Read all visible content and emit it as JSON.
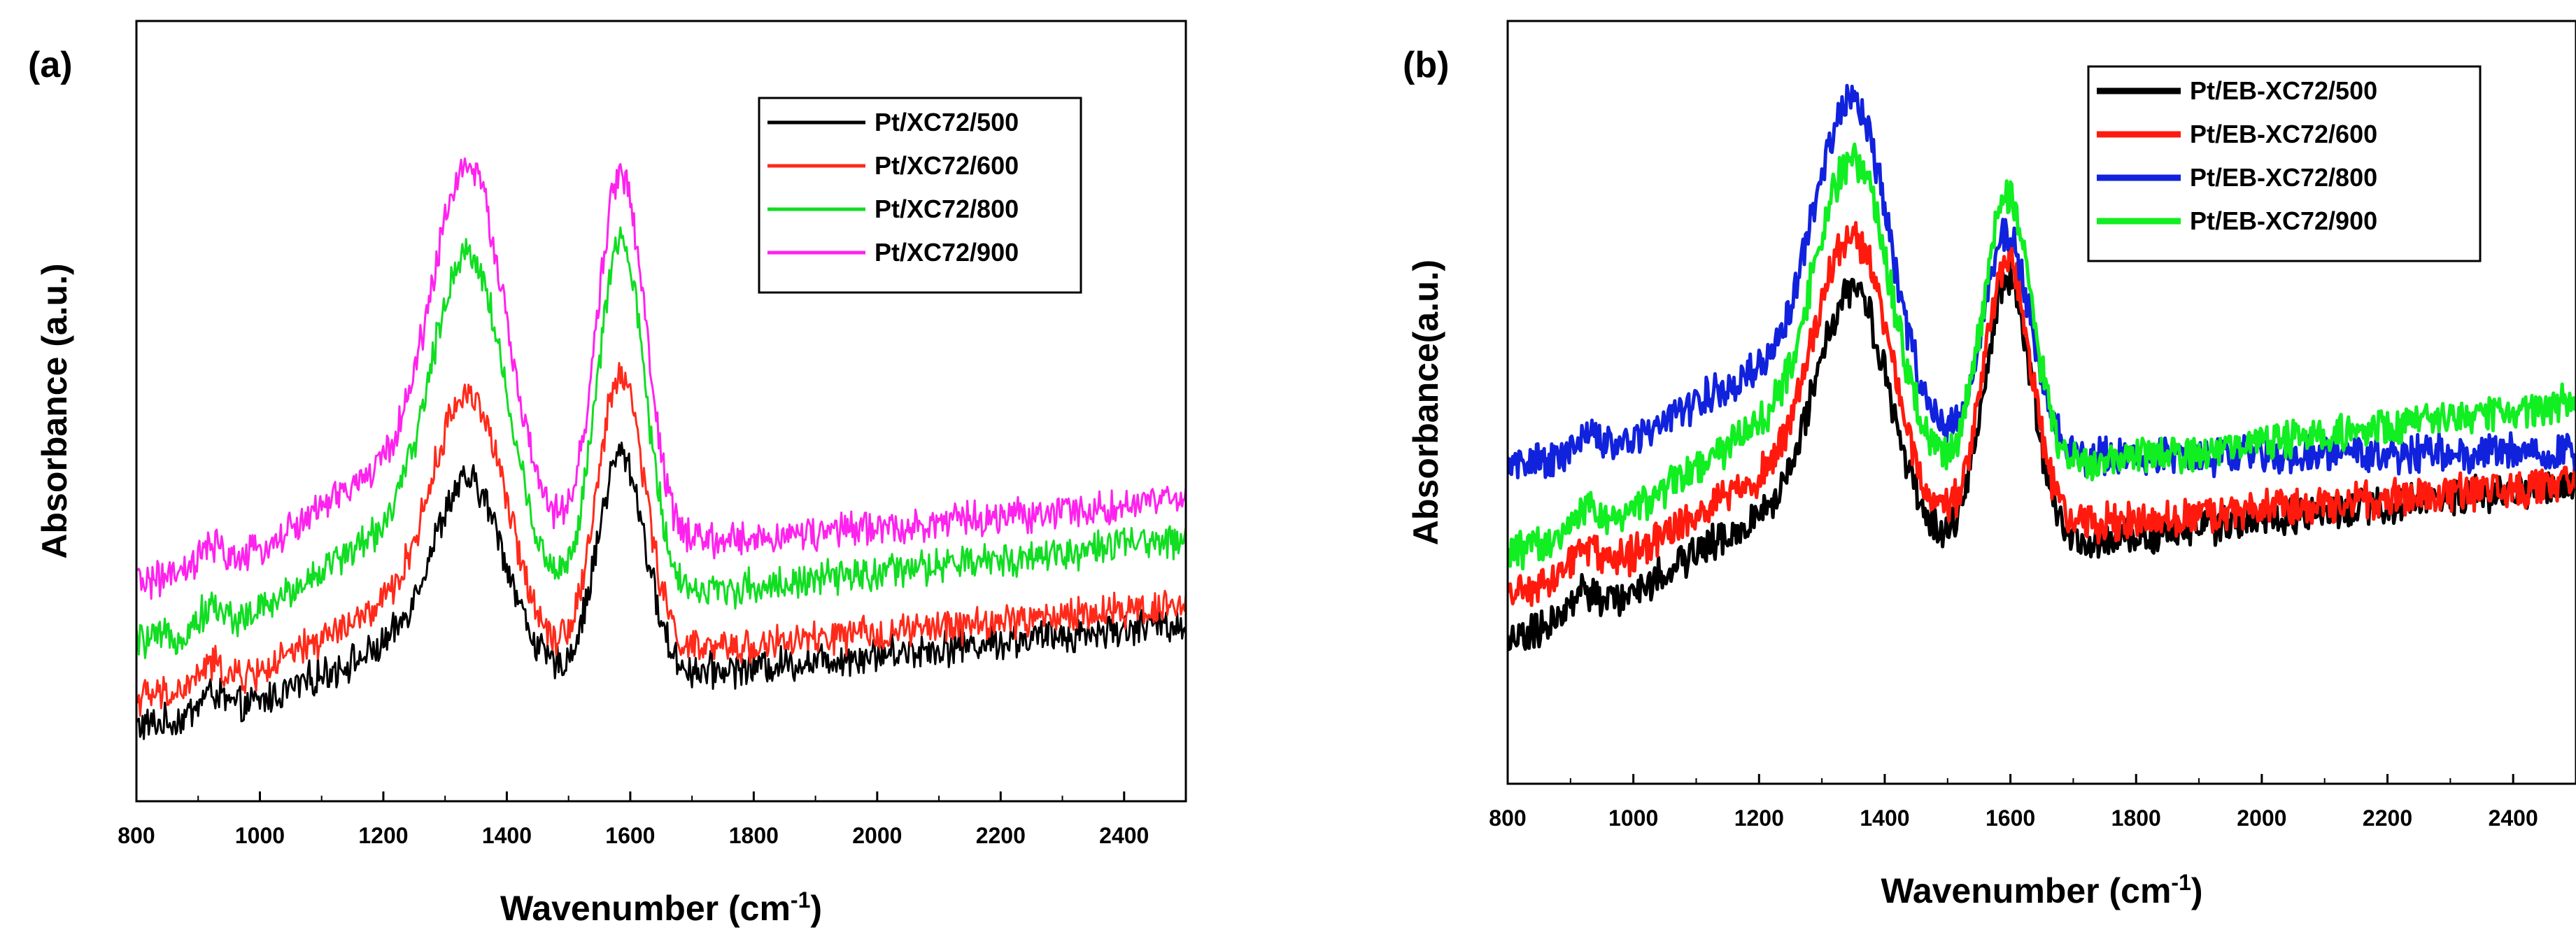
{
  "chart_data": [
    {
      "panel": "(a)",
      "type": "line",
      "xlabel_main": "Wavenumber (cm",
      "xlabel_sup": "-1",
      "xlabel_end": ")",
      "ylabel": "Absorbance (a.u.)",
      "xlim": [
        800,
        2500
      ],
      "ylim": [
        -0.35,
        3.8
      ],
      "xticks": [
        800,
        1000,
        1200,
        1400,
        1600,
        1800,
        2000,
        2200,
        2400
      ],
      "legend_position": "top-right",
      "peaks": [
        1340,
        1585
      ],
      "series": [
        {
          "name": "Pt/XC72/500",
          "color": "#000000",
          "offset": 0.0,
          "d_height": 1.0,
          "g_height": 1.2,
          "base_start": 0.05,
          "base_end": 0.6,
          "ratio": 1.05
        },
        {
          "name": "Pt/XC72/600",
          "color": "#ff2a1a",
          "offset": 0.15,
          "d_height": 1.3,
          "g_height": 1.5,
          "base_start": 0.05,
          "base_end": 0.55,
          "ratio": 1.1
        },
        {
          "name": "Pt/XC72/800",
          "color": "#11dd22",
          "offset": 0.35,
          "d_height": 1.7,
          "g_height": 1.9,
          "base_start": 0.15,
          "base_end": 0.7,
          "ratio": 1.2
        },
        {
          "name": "Pt/XC72/900",
          "color": "#ff22ee",
          "offset": 0.6,
          "d_height": 1.85,
          "g_height": 2.0,
          "base_start": 0.22,
          "base_end": 0.65,
          "ratio": 1.2
        }
      ]
    },
    {
      "panel": "(b)",
      "type": "line",
      "xlabel_main": "Wavenumber (cm",
      "xlabel_sup": "-1",
      "xlabel_end": ")",
      "ylabel": "Absorbance(a.u.)",
      "xlim": [
        800,
        2500
      ],
      "ylim": [
        -0.2,
        3.6
      ],
      "xticks": [
        800,
        1000,
        1200,
        1400,
        1600,
        1800,
        2000,
        2200,
        2400
      ],
      "legend_position": "top-right",
      "peaks": [
        1350,
        1595
      ],
      "series": [
        {
          "name": "Pt/EB-XC72/500",
          "color": "#000000",
          "offset": 0.3,
          "d_height": 1.25,
          "g_height": 1.35,
          "base_start": 0.2,
          "base_end": 1.0,
          "ratio": 0.75
        },
        {
          "name": "Pt/EB-XC72/600",
          "color": "#ff1a0d",
          "offset": 0.55,
          "d_height": 1.4,
          "g_height": 1.35,
          "base_start": 0.2,
          "base_end": 0.75,
          "ratio": 0.8
        },
        {
          "name": "Pt/EB-XC72/800",
          "color": "#1122dd",
          "offset": 1.35,
          "d_height": 1.6,
          "g_height": 1.1,
          "base_start": 0.05,
          "base_end": 0.1,
          "ratio": 1.0
        },
        {
          "name": "Pt/EB-XC72/900",
          "color": "#11ee22",
          "offset": 0.8,
          "d_height": 1.5,
          "g_height": 1.4,
          "base_start": 0.15,
          "base_end": 0.9,
          "ratio": 0.9
        }
      ]
    }
  ]
}
